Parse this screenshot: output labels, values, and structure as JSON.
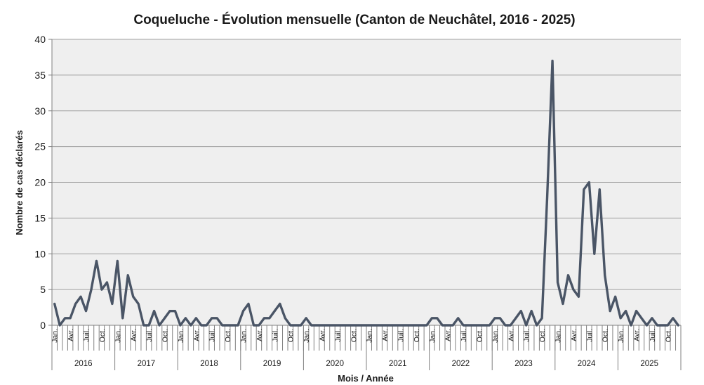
{
  "chart_data": {
    "type": "line",
    "title": "Coqueluche - Évolution mensuelle (Canton de Neuchâtel, 2016 - 2025)",
    "xlabel": "Mois / Année",
    "ylabel": "Nombre de cas déclarés",
    "ylim": [
      0,
      40
    ],
    "yticks": [
      0,
      5,
      10,
      15,
      20,
      25,
      30,
      35,
      40
    ],
    "grid": true,
    "legend": "none",
    "colors": {
      "line": "#4a5566",
      "plot_bg": "#efefef",
      "grid": "#a0a0a0"
    },
    "years": [
      "2016",
      "2017",
      "2018",
      "2019",
      "2020",
      "2021",
      "2022",
      "2023",
      "2024",
      "2025"
    ],
    "month_labels": [
      "Jan.",
      "Avr.",
      "Juil.",
      "Oct."
    ],
    "series": [
      {
        "values": [
          3,
          0,
          1,
          1,
          3,
          4,
          2,
          5,
          9,
          5,
          6,
          3,
          9,
          1,
          7,
          4,
          3,
          0,
          0,
          2,
          0,
          1,
          2,
          2,
          0,
          1,
          0,
          1,
          0,
          0,
          1,
          1,
          0,
          0,
          0,
          0,
          2,
          3,
          0,
          0,
          1,
          1,
          2,
          3,
          1,
          0,
          0,
          0,
          1,
          0,
          0,
          0,
          0,
          0,
          0,
          0,
          0,
          0,
          0,
          0,
          0,
          0,
          0,
          0,
          0,
          0,
          0,
          0,
          0,
          0,
          0,
          0,
          1,
          1,
          0,
          0,
          0,
          1,
          0,
          0,
          0,
          0,
          0,
          0,
          1,
          1,
          0,
          0,
          1,
          2,
          0,
          2,
          0,
          1,
          18,
          37,
          6,
          3,
          7,
          5,
          4,
          19,
          20,
          10,
          19,
          7,
          2,
          4,
          1,
          2,
          0,
          2,
          1,
          0,
          1,
          0,
          0,
          0,
          1,
          0
        ]
      }
    ]
  }
}
